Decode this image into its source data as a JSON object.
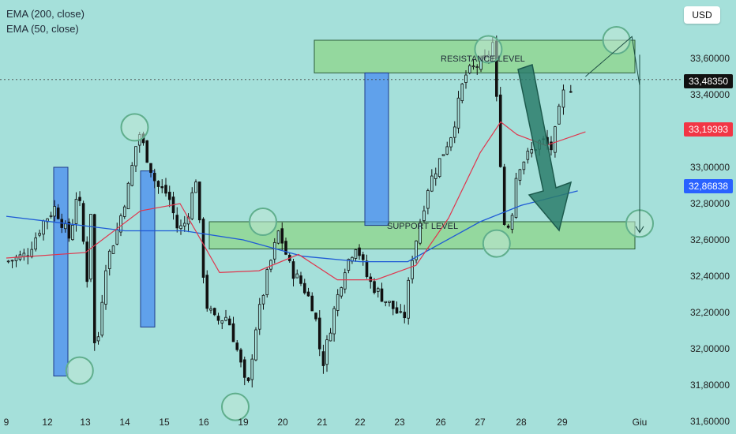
{
  "legend": {
    "ema200": "EMA (200, close)",
    "ema50": "EMA (50, close)"
  },
  "currency": "USD",
  "colors": {
    "background": "#a5e0da",
    "candle_up": "#111111",
    "candle_down": "#111111",
    "ema200": "#1f5bd6",
    "ema50": "#e0364d",
    "zone_fill": "#8fd68a",
    "zone_stroke": "#2d5e3a",
    "highlight_bar": "#4a8cf0",
    "arrow": "#2b7d6b",
    "last_price_tag": "#111111",
    "ema50_tag": "#f23645",
    "ema200_tag": "#2962ff"
  },
  "chart_data": {
    "type": "candlestick",
    "ylim": [
      31520,
      33780
    ],
    "y_ticks": [
      31600,
      31800,
      32000,
      32200,
      32400,
      32600,
      32800,
      33000,
      33200,
      33400,
      33600
    ],
    "y_tick_labels": [
      "31,60000",
      "31,80000",
      "32,00000",
      "32,20000",
      "32,40000",
      "32,60000",
      "32,80000",
      "33,00000",
      "33,20000",
      "33,40000",
      "33,60000"
    ],
    "x_tick_labels": [
      "9",
      "12",
      "13",
      "14",
      "15",
      "16",
      "19",
      "20",
      "21",
      "22",
      "23",
      "26",
      "27",
      "28",
      "29",
      "Giu"
    ],
    "price_tags": [
      {
        "label": "33,48350",
        "value": 33483.5,
        "color": "#111111"
      },
      {
        "label": "33,19393",
        "value": 33193.93,
        "color": "#f23645"
      },
      {
        "label": "32,86838",
        "value": 32868.38,
        "color": "#2962ff"
      }
    ],
    "close_path": [
      [
        0,
        32480
      ],
      [
        0.5,
        32520
      ],
      [
        0.9,
        32700
      ],
      [
        1.2,
        32780
      ],
      [
        1.6,
        32600
      ],
      [
        1.8,
        32900
      ],
      [
        2.05,
        32380
      ],
      [
        2.15,
        32800
      ],
      [
        2.25,
        31890
      ],
      [
        2.5,
        32450
      ],
      [
        2.8,
        32650
      ],
      [
        3.1,
        32900
      ],
      [
        3.35,
        33200
      ],
      [
        3.5,
        33100
      ],
      [
        3.8,
        32900
      ],
      [
        4.1,
        32850
      ],
      [
        4.35,
        32650
      ],
      [
        4.55,
        32700
      ],
      [
        4.8,
        32940
      ],
      [
        5.05,
        32250
      ],
      [
        5.3,
        32150
      ],
      [
        5.6,
        32180
      ],
      [
        5.9,
        31950
      ],
      [
        6.1,
        31750
      ],
      [
        6.3,
        32100
      ],
      [
        6.6,
        32400
      ],
      [
        6.9,
        32650
      ],
      [
        7.2,
        32440
      ],
      [
        7.5,
        32350
      ],
      [
        7.8,
        32220
      ],
      [
        8.0,
        31900
      ],
      [
        8.3,
        32200
      ],
      [
        8.6,
        32450
      ],
      [
        8.9,
        32580
      ],
      [
        9.2,
        32380
      ],
      [
        9.5,
        32300
      ],
      [
        9.9,
        32210
      ],
      [
        10.1,
        32150
      ],
      [
        10.3,
        32500
      ],
      [
        10.7,
        32900
      ],
      [
        11.0,
        33050
      ],
      [
        11.3,
        33200
      ],
      [
        11.6,
        33500
      ],
      [
        11.9,
        33560
      ],
      [
        12.15,
        33580
      ],
      [
        12.3,
        33700
      ],
      [
        12.45,
        33200
      ],
      [
        12.6,
        32650
      ],
      [
        12.75,
        32700
      ],
      [
        12.9,
        33000
      ],
      [
        13.1,
        33050
      ],
      [
        13.3,
        33100
      ],
      [
        13.5,
        33150
      ],
      [
        13.75,
        33100
      ],
      [
        14.0,
        33400
      ],
      [
        14.2,
        33480
      ]
    ],
    "ema50": [
      [
        0,
        32500
      ],
      [
        2.0,
        32530
      ],
      [
        3.4,
        32760
      ],
      [
        4.4,
        32800
      ],
      [
        5.4,
        32420
      ],
      [
        6.4,
        32430
      ],
      [
        7.4,
        32520
      ],
      [
        8.4,
        32380
      ],
      [
        9.4,
        32380
      ],
      [
        10.4,
        32460
      ],
      [
        11.2,
        32720
      ],
      [
        12.0,
        33080
      ],
      [
        12.5,
        33250
      ],
      [
        12.9,
        33180
      ],
      [
        13.6,
        33120
      ],
      [
        14.3,
        33195
      ]
    ],
    "ema200": [
      [
        0,
        32730
      ],
      [
        1.5,
        32690
      ],
      [
        3.0,
        32650
      ],
      [
        4.5,
        32650
      ],
      [
        6.0,
        32600
      ],
      [
        7.5,
        32510
      ],
      [
        9.0,
        32480
      ],
      [
        10.2,
        32480
      ],
      [
        11.0,
        32580
      ],
      [
        12.0,
        32700
      ],
      [
        13.0,
        32790
      ],
      [
        14.2,
        32870
      ]
    ],
    "resistance_zone": {
      "label": "RESISTANCE LEVEL",
      "range": [
        33520,
        33700
      ],
      "x_range": [
        10.6,
        21.0
      ]
    },
    "support_zone": {
      "label": "SUPPORT LEVEL",
      "range": [
        32550,
        32700
      ],
      "x_range": [
        6.7,
        21.0
      ]
    },
    "highlight_bars": [
      {
        "x_range": [
          1.5,
          2.3
        ],
        "y_range": [
          31850,
          33000
        ]
      },
      {
        "x_range": [
          4.5,
          5.1
        ],
        "y_range": [
          32120,
          32980
        ]
      },
      {
        "x_range": [
          11.8,
          12.8
        ],
        "y_range": [
          32680,
          33520
        ]
      }
    ],
    "circles": [
      {
        "x": 1.85,
        "y": 31880
      },
      {
        "x": 3.25,
        "y": 33220
      },
      {
        "x": 5.8,
        "y": 31680
      },
      {
        "x": 6.5,
        "y": 32700
      },
      {
        "x": 12.2,
        "y": 33650
      },
      {
        "x": 12.4,
        "y": 32580
      },
      {
        "x": 14.7,
        "y": 33700
      },
      {
        "x": 16.0,
        "y": 32690
      }
    ],
    "projection_path": [
      [
        14.3,
        33500
      ],
      [
        14.9,
        33720
      ],
      [
        15.2,
        33450
      ],
      [
        15.6,
        33620
      ],
      [
        16.1,
        32640
      ]
    ],
    "big_arrow": {
      "from": [
        17.6,
        33500
      ],
      "to": [
        18.4,
        32600
      ]
    }
  }
}
